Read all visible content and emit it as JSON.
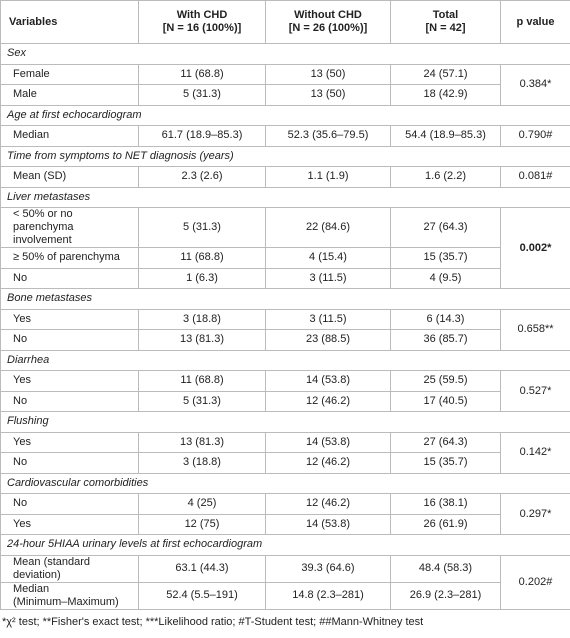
{
  "table": {
    "header": [
      {
        "lines": [
          "Variables"
        ]
      },
      {
        "lines": [
          "With CHD",
          "[N = 16 (100%)]"
        ]
      },
      {
        "lines": [
          "Without CHD",
          "[N = 26 (100%)]"
        ]
      },
      {
        "lines": [
          "Total",
          "[N = 42]"
        ]
      },
      {
        "lines": [
          "p value"
        ]
      }
    ],
    "sections": [
      {
        "title": "Sex",
        "p": "0.384*",
        "rows": [
          {
            "label": [
              "Female"
            ],
            "cells": [
              "11 (68.8)",
              "13 (50)",
              "24 (57.1)"
            ]
          },
          {
            "label": [
              "Male"
            ],
            "cells": [
              "5 (31.3)",
              "13 (50)",
              "18 (42.9)"
            ]
          }
        ]
      },
      {
        "title": "Age at first echocardiogram",
        "p": "0.790#",
        "rows": [
          {
            "label": [
              "Median"
            ],
            "cells": [
              "61.7 (18.9–85.3)",
              "52.3 (35.6–79.5)",
              "54.4 (18.9–85.3)"
            ]
          }
        ]
      },
      {
        "title": "Time from symptoms to NET diagnosis (years)",
        "p": "0.081#",
        "rows": [
          {
            "label": [
              "Mean (SD)"
            ],
            "cells": [
              "2.3 (2.6)",
              "1.1 (1.9)",
              "1.6 (2.2)"
            ]
          }
        ]
      },
      {
        "title": "Liver metastases",
        "p": "0.002*",
        "rows": [
          {
            "label": [
              "< 50% or no parenchyma",
              "involvement"
            ],
            "cells": [
              "5 (31.3)",
              "22 (84.6)",
              "27 (64.3)"
            ]
          },
          {
            "label": [
              "≥ 50% of parenchyma"
            ],
            "cells": [
              "11 (68.8)",
              "4 (15.4)",
              "15 (35.7)"
            ]
          },
          {
            "label": [
              "No"
            ],
            "cells": [
              "1 (6.3)",
              "3 (11.5)",
              "4 (9.5)"
            ]
          }
        ]
      },
      {
        "title": "Bone metastases",
        "p": "0.658**",
        "rows": [
          {
            "label": [
              "Yes"
            ],
            "cells": [
              "3 (18.8)",
              "3 (11.5)",
              "6 (14.3)"
            ]
          },
          {
            "label": [
              "No"
            ],
            "cells": [
              "13 (81.3)",
              "23 (88.5)",
              "36 (85.7)"
            ]
          }
        ]
      },
      {
        "title": "Diarrhea",
        "p": "0.527*",
        "rows": [
          {
            "label": [
              "Yes"
            ],
            "cells": [
              "11 (68.8)",
              "14 (53.8)",
              "25 (59.5)"
            ]
          },
          {
            "label": [
              "No"
            ],
            "cells": [
              "5 (31.3)",
              "12 (46.2)",
              "17 (40.5)"
            ]
          }
        ]
      },
      {
        "title": "Flushing",
        "p": "0.142*",
        "rows": [
          {
            "label": [
              "Yes"
            ],
            "cells": [
              "13 (81.3)",
              "14 (53.8)",
              "27 (64.3)"
            ]
          },
          {
            "label": [
              "No"
            ],
            "cells": [
              "3 (18.8)",
              "12 (46.2)",
              "15 (35.7)"
            ]
          }
        ]
      },
      {
        "title": "Cardiovascular comorbidities",
        "p": "0.297*",
        "rows": [
          {
            "label": [
              "No"
            ],
            "cells": [
              "4 (25)",
              "12 (46.2)",
              "16 (38.1)"
            ]
          },
          {
            "label": [
              "Yes"
            ],
            "cells": [
              "12 (75)",
              "14 (53.8)",
              "26 (61.9)"
            ]
          }
        ]
      },
      {
        "title": "24-hour 5HIAA urinary levels at first echocardiogram",
        "p": "0.202#",
        "rows": [
          {
            "label": [
              "Mean (standard deviation)"
            ],
            "cells": [
              "63.1 (44.3)",
              "39.3 (64.6)",
              "48.4 (58.3)"
            ]
          },
          {
            "label": [
              "Median",
              "(Minimum–Maximum)"
            ],
            "cells": [
              "52.4 (5.5–191)",
              "14.8 (2.3–281)",
              "26.9 (2.3–281)"
            ]
          }
        ]
      }
    ],
    "footnote": "*χ² test; **Fisher's exact test; ***Likelihood ratio; #T-Student test; ##Mann-Whitney test"
  }
}
